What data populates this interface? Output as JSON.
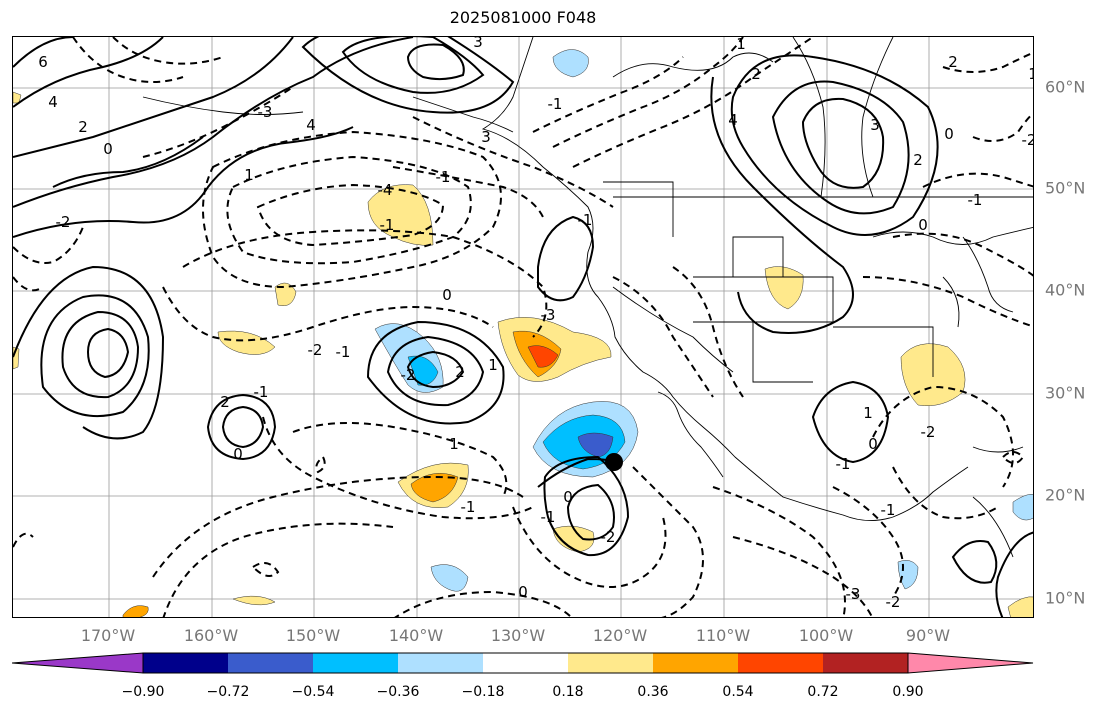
{
  "title": "2025081000 F048",
  "map": {
    "lon_labels": [
      "170°W",
      "160°W",
      "150°W",
      "140°W",
      "130°W",
      "120°W",
      "110°W",
      "100°W",
      "90°W"
    ],
    "lat_labels": [
      "60°N",
      "50°N",
      "40°N",
      "30°N",
      "20°N",
      "10°N"
    ],
    "grid": true,
    "contour_style": "solid positive, dashed negative",
    "contour_labels": [
      "6",
      "4",
      "2",
      "0",
      "-2",
      "1",
      "-3",
      "-4",
      "-1",
      "4",
      "3",
      "2",
      "-2",
      "1",
      "-1",
      "0",
      "-1",
      "3",
      "2",
      "-1",
      "0",
      "-1",
      "-2",
      "0",
      "-1",
      "1",
      "0",
      "-1",
      "-2",
      "-3",
      "-1",
      "1",
      "2",
      "4",
      "3",
      "2",
      "0",
      "2",
      "1",
      "-2",
      "-1",
      "0",
      "1",
      "-1",
      "0",
      "-1",
      "-2",
      "-3",
      "-2"
    ],
    "storm_marker": "black-dot",
    "storm_lon": -121,
    "storm_lat": 23.5
  },
  "colorbar": {
    "colors": [
      "#9a38c8",
      "#00008b",
      "#3a5ccc",
      "#00bfff",
      "#aee0ff",
      "#ffffff",
      "#ffe98c",
      "#ffa500",
      "#ff4500",
      "#b22222",
      "#ff88aa"
    ],
    "tick_labels": [
      "−0.90",
      "−0.72",
      "−0.54",
      "−0.36",
      "−0.18",
      "0.18",
      "0.36",
      "0.54",
      "0.72",
      "0.90"
    ],
    "extend": "both"
  }
}
